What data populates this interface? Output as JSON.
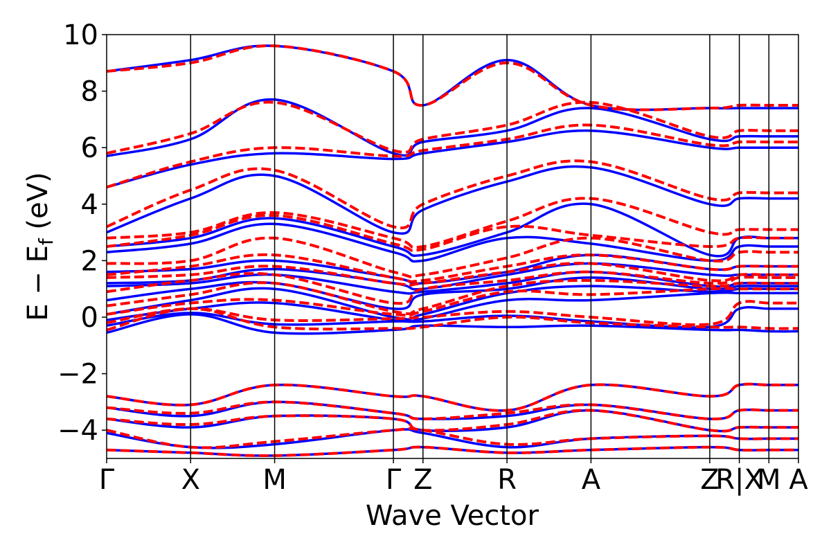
{
  "chart_data": {
    "type": "line",
    "title": "",
    "xlabel": "Wave Vector",
    "ylabel": "E − E",
    "ylabel_sub": "f",
    "ylabel_unit": " (eV)",
    "ylim": [
      -5,
      10
    ],
    "yticks": [
      -4,
      -2,
      0,
      2,
      4,
      6,
      8,
      10
    ],
    "ytick_labels": [
      "−4",
      "−2",
      "0",
      "2",
      "4",
      "6",
      "8",
      "10"
    ],
    "kpath": [
      {
        "label": "Γ",
        "x": 0.0
      },
      {
        "label": "X",
        "x": 1.0
      },
      {
        "label": "M",
        "x": 2.0
      },
      {
        "label": "Γ",
        "x": 3.414
      },
      {
        "label": "Z",
        "x": 3.766
      },
      {
        "label": "R",
        "x": 4.766
      },
      {
        "label": "A",
        "x": 5.766
      },
      {
        "label": "Z",
        "x": 7.18
      },
      {
        "label": "R|X",
        "x": 7.532
      },
      {
        "label": "M",
        "x": 7.884
      },
      {
        "label": "A",
        "x": 8.236
      }
    ],
    "grid": false,
    "legend": "none",
    "series": [
      {
        "style": "solid",
        "color": "#0000ff",
        "bands": [
          [
            -0.55,
            0.1,
            -0.55,
            -0.45,
            -0.3,
            -0.35,
            -0.3,
            -0.45,
            -0.45,
            -0.5,
            -0.5
          ],
          [
            -0.3,
            0.15,
            -0.25,
            -0.15,
            -0.15,
            0.05,
            -0.15,
            -0.35,
            0.3,
            0.3,
            0.3
          ],
          [
            -0.1,
            0.3,
            0.5,
            -0.1,
            -0.05,
            0.6,
            0.6,
            0.85,
            0.85,
            0.85,
            0.85
          ],
          [
            0.1,
            0.6,
            1.0,
            0.0,
            0.1,
            0.85,
            1.1,
            0.9,
            1.0,
            1.0,
            1.0
          ],
          [
            0.6,
            1.0,
            1.2,
            0.3,
            0.8,
            1.0,
            1.4,
            1.0,
            1.1,
            1.1,
            1.1
          ],
          [
            1.1,
            1.2,
            1.5,
            0.9,
            0.9,
            1.2,
            1.6,
            1.1,
            1.2,
            1.2,
            1.2
          ],
          [
            1.2,
            1.3,
            1.7,
            1.2,
            1.0,
            1.5,
            1.9,
            1.5,
            1.5,
            1.5,
            1.5
          ],
          [
            1.6,
            1.7,
            2.0,
            1.4,
            1.2,
            1.6,
            2.2,
            1.7,
            1.8,
            1.8,
            1.8
          ],
          [
            2.3,
            2.6,
            3.3,
            2.3,
            2.0,
            2.8,
            2.6,
            2.0,
            2.5,
            2.5,
            2.5
          ],
          [
            2.5,
            2.8,
            3.5,
            2.5,
            2.2,
            3.0,
            4.0,
            2.2,
            2.8,
            2.8,
            2.8
          ],
          [
            3.0,
            4.2,
            5.0,
            3.0,
            3.8,
            4.8,
            5.3,
            4.0,
            4.2,
            4.2,
            4.2
          ],
          [
            4.6,
            5.4,
            5.8,
            5.6,
            5.8,
            6.2,
            6.6,
            6.0,
            6.0,
            6.0,
            6.0
          ],
          [
            5.7,
            6.3,
            7.7,
            5.8,
            6.2,
            6.6,
            7.4,
            6.3,
            6.4,
            6.4,
            6.4
          ],
          [
            8.7,
            9.1,
            9.6,
            8.7,
            7.5,
            9.1,
            7.5,
            7.4,
            7.4,
            7.4,
            7.4
          ],
          [
            -4.7,
            -4.8,
            -4.9,
            -4.7,
            -4.6,
            -4.8,
            -4.7,
            -4.6,
            -4.7,
            -4.7,
            -4.7
          ],
          [
            -4.1,
            -4.6,
            -4.5,
            -4.0,
            -4.1,
            -4.6,
            -4.3,
            -4.2,
            -4.3,
            -4.3,
            -4.3
          ],
          [
            -3.6,
            -3.9,
            -3.5,
            -3.6,
            -4.0,
            -3.9,
            -3.3,
            -4.0,
            -3.9,
            -3.9,
            -3.9
          ],
          [
            -3.2,
            -3.5,
            -3.0,
            -3.4,
            -3.6,
            -3.5,
            -3.1,
            -3.6,
            -3.3,
            -3.3,
            -3.3
          ],
          [
            -2.8,
            -3.1,
            -2.4,
            -2.8,
            -2.8,
            -3.3,
            -2.4,
            -2.8,
            -2.4,
            -2.4,
            -2.4
          ]
        ]
      },
      {
        "style": "dashed",
        "color": "#ff0000",
        "bands": [
          [
            -0.45,
            0.3,
            -0.35,
            -0.4,
            -0.35,
            0.0,
            -0.2,
            -0.35,
            -0.35,
            -0.4,
            -0.4
          ],
          [
            -0.2,
            0.3,
            -0.1,
            -0.05,
            0.0,
            0.2,
            0.0,
            -0.25,
            0.5,
            0.5,
            0.5
          ],
          [
            0.1,
            0.5,
            0.6,
            0.1,
            0.2,
            0.9,
            0.8,
            1.0,
            1.0,
            1.0,
            1.0
          ],
          [
            0.4,
            0.8,
            1.2,
            0.2,
            0.3,
            1.1,
            1.3,
            1.1,
            1.2,
            1.2,
            1.2
          ],
          [
            0.9,
            1.3,
            1.5,
            0.5,
            1.0,
            1.3,
            1.6,
            1.2,
            1.4,
            1.4,
            1.4
          ],
          [
            1.4,
            1.5,
            1.8,
            1.2,
            1.2,
            1.6,
            1.9,
            1.3,
            1.5,
            1.5,
            1.5
          ],
          [
            1.5,
            1.8,
            2.2,
            1.4,
            1.3,
            1.8,
            2.2,
            1.7,
            1.8,
            1.8,
            1.8
          ],
          [
            1.9,
            2.0,
            2.8,
            1.6,
            1.5,
            2.1,
            2.8,
            2.0,
            2.3,
            2.3,
            2.3
          ],
          [
            2.5,
            2.9,
            3.6,
            2.6,
            2.4,
            3.2,
            2.9,
            2.5,
            2.8,
            2.8,
            2.8
          ],
          [
            2.8,
            3.0,
            3.7,
            2.8,
            2.5,
            3.4,
            4.2,
            3.0,
            3.1,
            3.1,
            3.1
          ],
          [
            3.2,
            4.5,
            5.2,
            3.2,
            4.0,
            5.0,
            5.5,
            4.2,
            4.4,
            4.4,
            4.4
          ],
          [
            4.6,
            5.5,
            6.0,
            5.7,
            5.9,
            6.3,
            6.8,
            6.1,
            6.2,
            6.2,
            6.2
          ],
          [
            5.8,
            6.5,
            7.6,
            5.9,
            6.3,
            6.8,
            7.6,
            6.4,
            6.6,
            6.6,
            6.6
          ],
          [
            8.7,
            9.0,
            9.6,
            8.7,
            7.5,
            9.0,
            7.5,
            7.4,
            7.5,
            7.5,
            7.5
          ],
          [
            -4.7,
            -4.8,
            -4.9,
            -4.7,
            -4.6,
            -4.8,
            -4.7,
            -4.6,
            -4.7,
            -4.7,
            -4.7
          ],
          [
            -4.0,
            -4.6,
            -4.4,
            -4.0,
            -4.0,
            -4.5,
            -4.3,
            -4.2,
            -4.3,
            -4.3,
            -4.3
          ],
          [
            -3.6,
            -3.8,
            -3.5,
            -3.6,
            -4.0,
            -3.8,
            -3.3,
            -4.0,
            -3.9,
            -3.9,
            -3.9
          ],
          [
            -3.2,
            -3.4,
            -3.0,
            -3.4,
            -3.6,
            -3.4,
            -3.1,
            -3.6,
            -3.3,
            -3.3,
            -3.3
          ],
          [
            -2.8,
            -3.1,
            -2.4,
            -2.8,
            -2.8,
            -3.3,
            -2.4,
            -2.8,
            -2.4,
            -2.4,
            -2.4
          ]
        ]
      }
    ]
  }
}
